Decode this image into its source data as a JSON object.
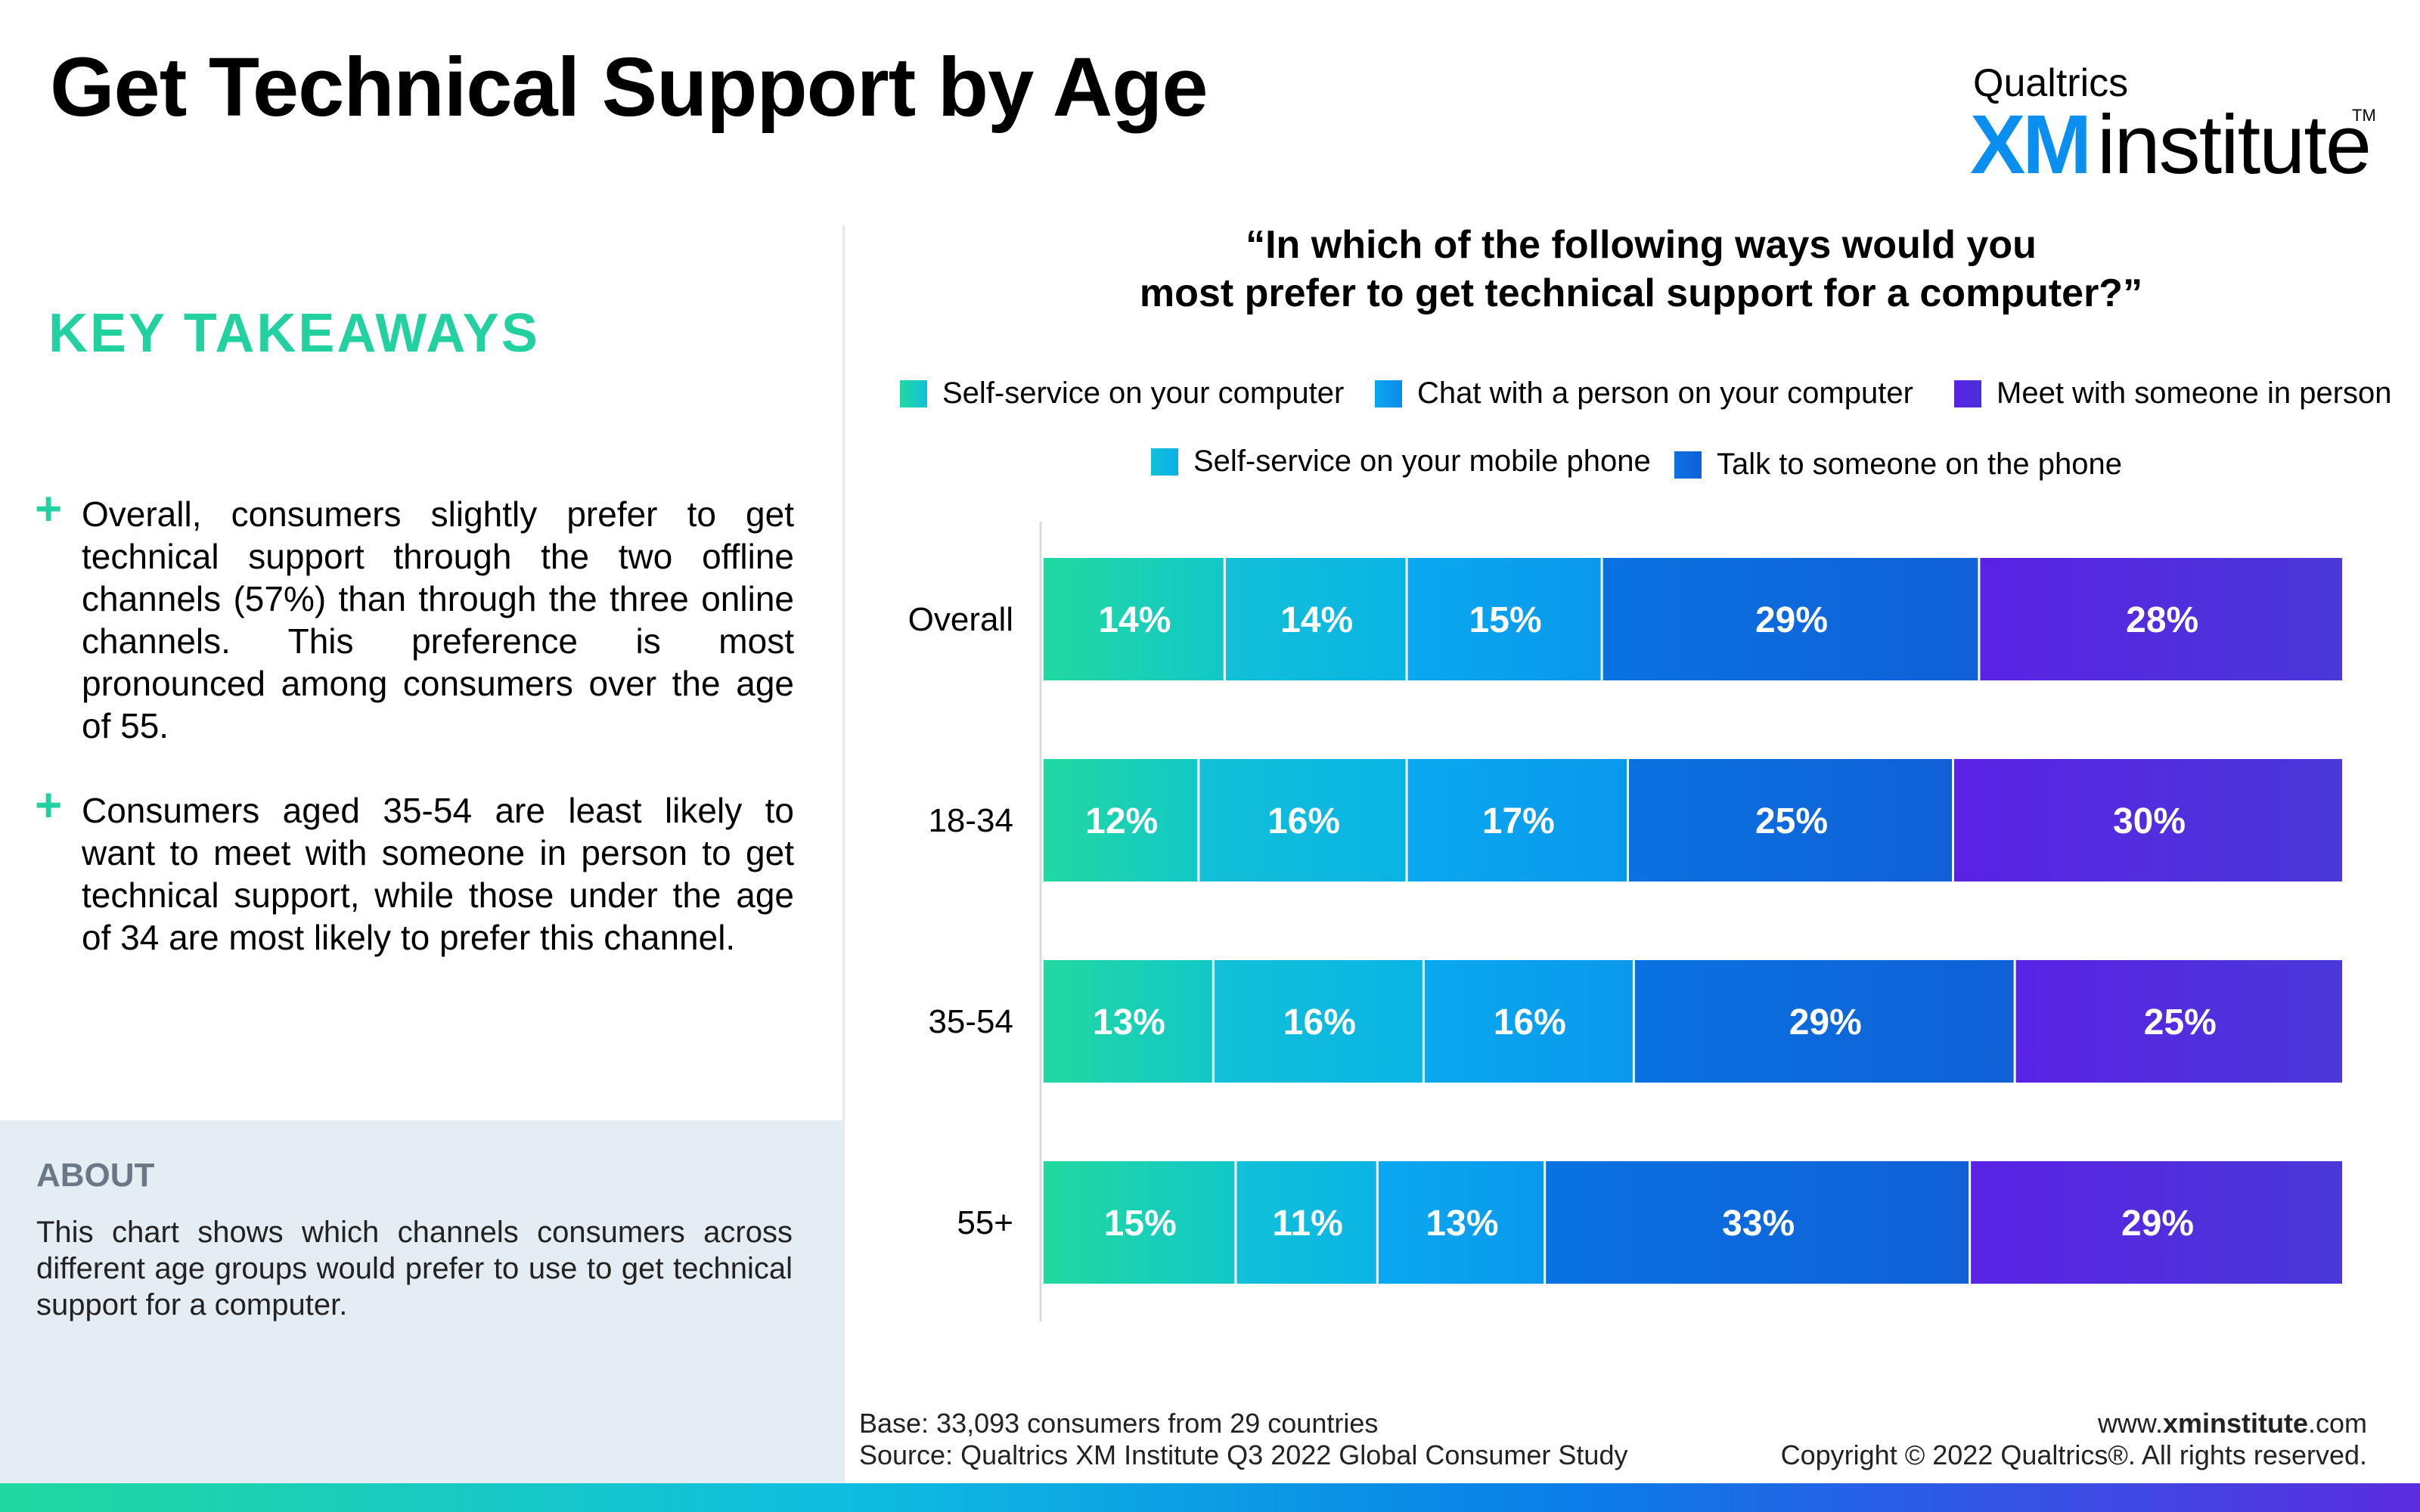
{
  "header": {
    "title": "Get Technical Support by Age",
    "logo": {
      "line1": "Qualtrics",
      "xm": "XM",
      "institute": "institute",
      "tm": "TM"
    }
  },
  "takeaways": {
    "title": "KEY TAKEAWAYS",
    "items": [
      "Overall, consumers slightly prefer to get technical support through the two offline channels (57%) than through the three online channels. This preference is most pronounced among consumers over the age of 55.",
      "Consumers aged 35-54 are least likely to want to meet with someone in person to get technical support, while those under the age of 34 are most likely to prefer this channel."
    ]
  },
  "about": {
    "title": "ABOUT",
    "text": "This chart shows which channels consumers across different age groups would prefer to use to get technical support for a computer."
  },
  "chart_question_line1": "“In which of the following ways would you",
  "chart_question_line2": "most prefer to get technical support for a computer?”",
  "chart_data": {
    "type": "bar",
    "orientation": "horizontal",
    "stacked": true,
    "title": "“In which of the following ways would you most prefer to get technical support for a computer?”",
    "categories": [
      "Overall",
      "18-34",
      "35-54",
      "55+"
    ],
    "series": [
      {
        "name": "Self-service on your computer",
        "values": [
          14,
          12,
          13,
          15
        ],
        "color": "#22d8a0"
      },
      {
        "name": "Self-service on your mobile phone",
        "values": [
          14,
          16,
          16,
          11
        ],
        "color": "#12c0d8"
      },
      {
        "name": "Chat with a person on your computer",
        "values": [
          15,
          17,
          16,
          13
        ],
        "color": "#0aa8f0"
      },
      {
        "name": "Talk to someone on the phone",
        "values": [
          29,
          25,
          29,
          33
        ],
        "color": "#0a72e0"
      },
      {
        "name": "Meet with someone in person",
        "values": [
          28,
          30,
          25,
          29
        ],
        "color": "#5a22e4"
      }
    ],
    "legend_order": [
      0,
      2,
      4,
      1,
      3
    ],
    "legend_placement": "top",
    "grid": false
  },
  "footer": {
    "base": "Base: 33,093 consumers from 29 countries",
    "source": "Source: Qualtrics XM Institute Q3 2022 Global Consumer Study",
    "site_prefix": "www.",
    "site_bold": "xminstitute",
    "site_suffix": ".com",
    "copyright": "Copyright © 2022 Qualtrics®. All rights reserved."
  }
}
